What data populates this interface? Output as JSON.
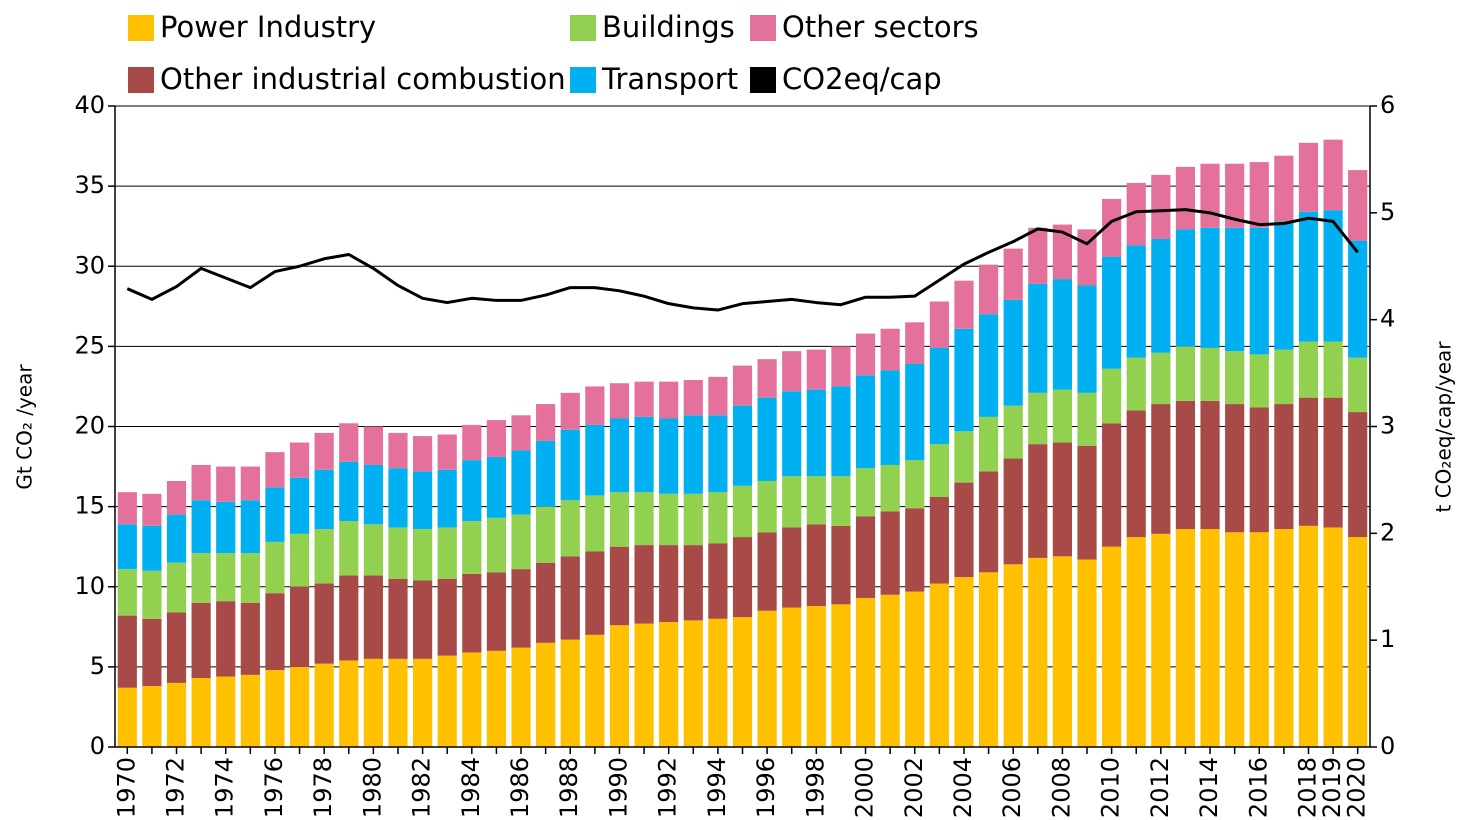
{
  "chart_data": {
    "type": "bar",
    "stacked": true,
    "categories": [
      "1970",
      null,
      "1972",
      null,
      "1974",
      null,
      "1976",
      null,
      "1978",
      null,
      "1980",
      null,
      "1982",
      null,
      "1984",
      null,
      "1986",
      null,
      "1988",
      null,
      "1990",
      null,
      "1992",
      null,
      "1994",
      null,
      "1996",
      null,
      "1998",
      null,
      "2000",
      null,
      "2002",
      null,
      "2004",
      null,
      "2006",
      null,
      "2008",
      null,
      "2010",
      null,
      "2012",
      null,
      "2014",
      null,
      "2016",
      null,
      "2018",
      "2019",
      "2020"
    ],
    "ylabel": "Gt CO₂ /year",
    "y2label": "t CO₂eq/cap/year",
    "ylim": [
      0,
      40
    ],
    "yticks": [
      0,
      5,
      10,
      15,
      20,
      25,
      30,
      35,
      40
    ],
    "y2lim": [
      0,
      6
    ],
    "y2ticks": [
      0,
      1,
      2,
      3,
      4,
      5,
      6
    ],
    "grid": true,
    "series": [
      {
        "name": "Power Industry",
        "color": "#ffc000",
        "values": [
          3.7,
          3.8,
          4.0,
          4.3,
          4.4,
          4.5,
          4.8,
          5.0,
          5.2,
          5.4,
          5.5,
          5.5,
          5.5,
          5.7,
          5.9,
          6.0,
          6.2,
          6.5,
          6.7,
          7.0,
          7.6,
          7.7,
          7.8,
          7.9,
          8.0,
          8.1,
          8.5,
          8.7,
          8.8,
          8.9,
          9.3,
          9.5,
          9.7,
          10.2,
          10.6,
          10.9,
          11.4,
          11.8,
          11.9,
          11.7,
          12.5,
          13.1,
          13.3,
          13.6,
          13.6,
          13.4,
          13.4,
          13.6,
          13.8,
          13.7,
          13.1
        ]
      },
      {
        "name": "Other industrial combustion",
        "color": "#a84a48",
        "values": [
          4.5,
          4.2,
          4.4,
          4.7,
          4.7,
          4.5,
          4.8,
          5.0,
          5.0,
          5.3,
          5.2,
          5.0,
          4.9,
          4.8,
          4.9,
          4.9,
          4.9,
          5.0,
          5.2,
          5.2,
          4.9,
          4.9,
          4.8,
          4.7,
          4.7,
          5.0,
          4.9,
          5.0,
          5.1,
          4.9,
          5.1,
          5.2,
          5.2,
          5.4,
          5.9,
          6.3,
          6.6,
          7.1,
          7.1,
          7.1,
          7.7,
          7.9,
          8.1,
          8.0,
          8.0,
          8.0,
          7.8,
          7.8,
          8.0,
          8.1,
          7.8
        ]
      },
      {
        "name": "Buildings",
        "color": "#92d050",
        "values": [
          2.9,
          3.0,
          3.1,
          3.1,
          3.0,
          3.1,
          3.2,
          3.3,
          3.4,
          3.4,
          3.2,
          3.2,
          3.2,
          3.2,
          3.3,
          3.4,
          3.4,
          3.5,
          3.5,
          3.5,
          3.4,
          3.3,
          3.2,
          3.2,
          3.2,
          3.2,
          3.2,
          3.2,
          3.0,
          3.1,
          3.0,
          2.9,
          3.0,
          3.3,
          3.2,
          3.4,
          3.3,
          3.2,
          3.3,
          3.3,
          3.4,
          3.3,
          3.2,
          3.4,
          3.3,
          3.3,
          3.3,
          3.4,
          3.5,
          3.5,
          3.4
        ]
      },
      {
        "name": "Transport",
        "color": "#00b0f0",
        "values": [
          2.8,
          2.8,
          3.0,
          3.3,
          3.2,
          3.3,
          3.4,
          3.5,
          3.7,
          3.7,
          3.7,
          3.7,
          3.6,
          3.6,
          3.8,
          3.8,
          4.0,
          4.1,
          4.4,
          4.4,
          4.6,
          4.7,
          4.7,
          4.9,
          4.8,
          5.0,
          5.2,
          5.3,
          5.4,
          5.6,
          5.8,
          5.9,
          6.0,
          6.0,
          6.4,
          6.4,
          6.6,
          6.8,
          6.9,
          6.7,
          7.0,
          7.0,
          7.1,
          7.3,
          7.5,
          7.7,
          7.9,
          8.0,
          8.1,
          8.2,
          7.3
        ]
      },
      {
        "name": "Other sectors",
        "color": "#e4719b",
        "values": [
          2.0,
          2.0,
          2.1,
          2.2,
          2.2,
          2.1,
          2.2,
          2.2,
          2.3,
          2.4,
          2.4,
          2.2,
          2.2,
          2.2,
          2.2,
          2.3,
          2.2,
          2.3,
          2.3,
          2.4,
          2.2,
          2.2,
          2.3,
          2.2,
          2.4,
          2.5,
          2.4,
          2.5,
          2.5,
          2.5,
          2.6,
          2.6,
          2.6,
          2.9,
          3.0,
          3.1,
          3.2,
          3.5,
          3.4,
          3.5,
          3.6,
          3.9,
          4.0,
          3.9,
          4.0,
          4.0,
          4.1,
          4.1,
          4.3,
          4.4,
          4.4
        ]
      },
      {
        "name": "CO2eq/cap",
        "type": "line",
        "axis": "y2",
        "color": "#000000",
        "values": [
          4.29,
          4.19,
          4.31,
          4.48,
          4.39,
          4.3,
          4.45,
          4.5,
          4.57,
          4.61,
          4.48,
          4.32,
          4.2,
          4.16,
          4.2,
          4.18,
          4.18,
          4.23,
          4.3,
          4.3,
          4.27,
          4.22,
          4.15,
          4.11,
          4.09,
          4.15,
          4.17,
          4.19,
          4.16,
          4.14,
          4.21,
          4.21,
          4.22,
          4.37,
          4.52,
          4.63,
          4.73,
          4.85,
          4.82,
          4.71,
          4.92,
          5.01,
          5.02,
          5.03,
          5.0,
          4.94,
          4.89,
          4.9,
          4.95,
          4.92,
          4.63
        ]
      }
    ]
  }
}
